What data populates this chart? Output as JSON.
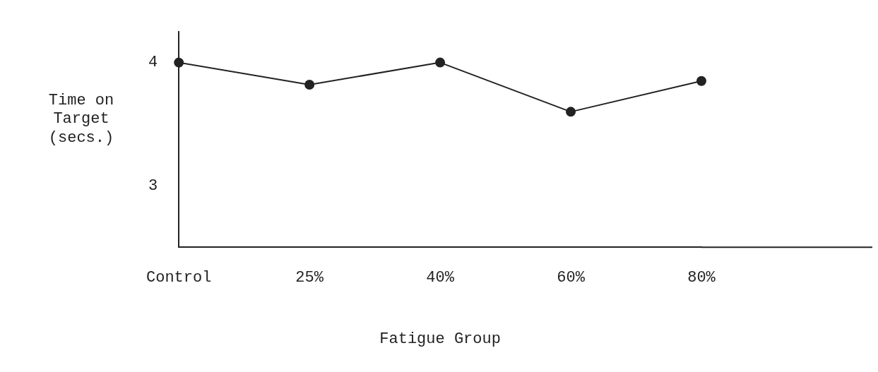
{
  "chart_data": {
    "type": "line",
    "xlabel": "Fatigue Group",
    "ylabel": "Time on Target (secs.)",
    "categories": [
      "Control",
      "25%",
      "40%",
      "60%",
      "80%"
    ],
    "series": [
      {
        "color": "#222222",
        "values": [
          4.0,
          3.82,
          4.0,
          3.6,
          3.85
        ]
      }
    ],
    "ylim": [
      2.5,
      4.25
    ],
    "yticks": [
      3,
      4
    ],
    "grid": false,
    "legend": false,
    "marker": "circle",
    "line_style": "solid"
  }
}
